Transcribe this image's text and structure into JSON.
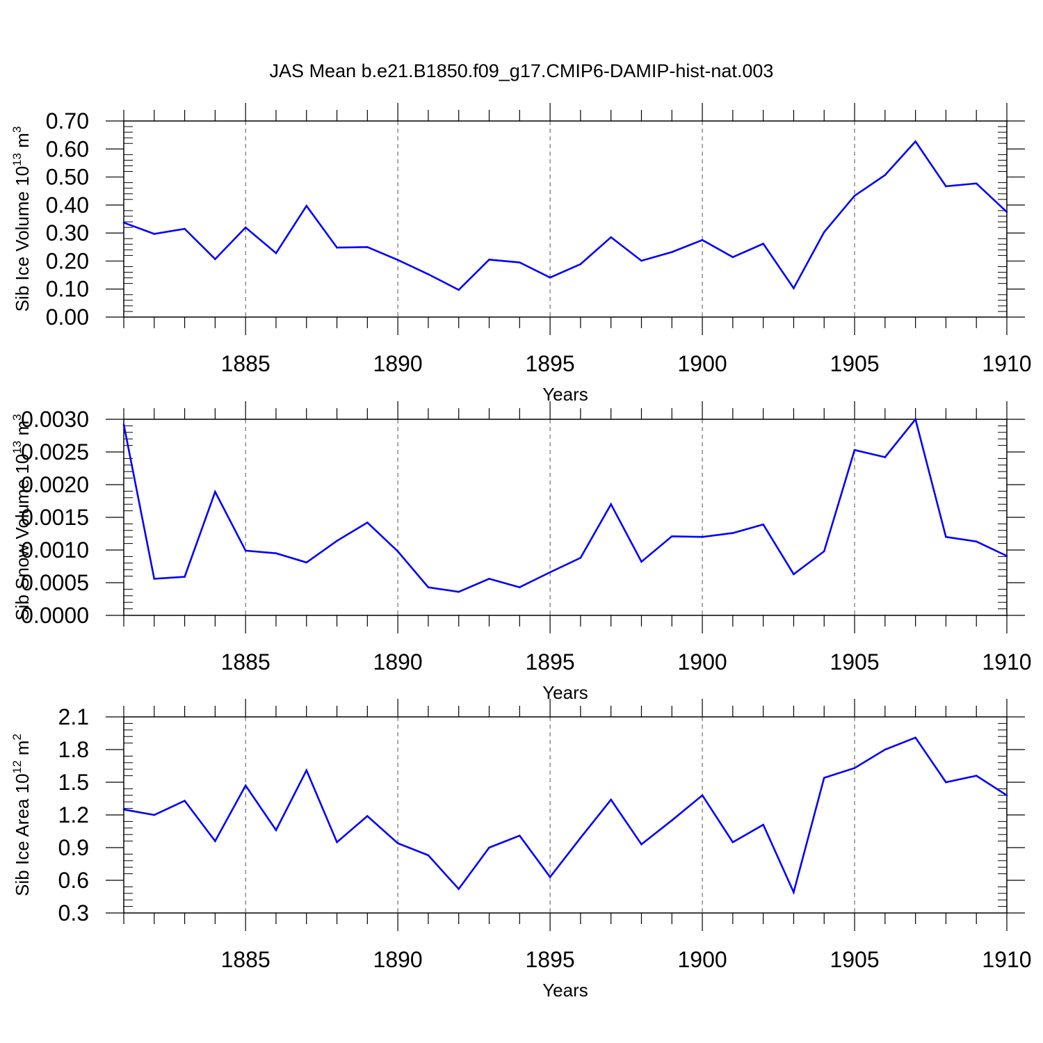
{
  "title": "JAS Mean b.e21.B1850.f09_g17.CMIP6-DAMIP-hist-nat.003",
  "line_color": "#0000ff",
  "chart_data": [
    {
      "type": "line",
      "ylabel": "Sib Ice Volume 10",
      "ylabel_exp": "13",
      "ylabel_unit": " m",
      "ylabel_unit_exp": "3",
      "xlabel": "Years",
      "xlim": [
        1881,
        1910
      ],
      "ylim": [
        0,
        0.7
      ],
      "x_ticks": [
        "1885",
        "1890",
        "1895",
        "1900",
        "1905",
        "1910"
      ],
      "y_ticks": [
        "0.00",
        "0.10",
        "0.20",
        "0.30",
        "0.40",
        "0.50",
        "0.60",
        "0.70"
      ],
      "series": [
        {
          "x": [
            1881,
            1882,
            1883,
            1884,
            1885,
            1886,
            1887,
            1888,
            1889,
            1890,
            1891,
            1892,
            1893,
            1894,
            1895,
            1896,
            1897,
            1898,
            1899,
            1900,
            1901,
            1902,
            1903,
            1904,
            1905,
            1906,
            1907,
            1908,
            1909,
            1910
          ],
          "values": [
            0.337,
            0.297,
            0.315,
            0.207,
            0.32,
            0.228,
            0.397,
            0.248,
            0.25,
            0.204,
            0.153,
            0.097,
            0.205,
            0.195,
            0.141,
            0.189,
            0.285,
            0.201,
            0.232,
            0.275,
            0.214,
            0.262,
            0.103,
            0.303,
            0.433,
            0.507,
            0.627,
            0.467,
            0.477,
            0.375
          ]
        }
      ]
    },
    {
      "type": "line",
      "ylabel": "Sib Snow Volume 10",
      "ylabel_exp": "13",
      "ylabel_unit": " m",
      "ylabel_unit_exp": "3",
      "xlabel": "Years",
      "xlim": [
        1881,
        1910
      ],
      "ylim": [
        0,
        0.003
      ],
      "x_ticks": [
        "1885",
        "1890",
        "1895",
        "1900",
        "1905",
        "1910"
      ],
      "y_ticks": [
        "0.0000",
        "0.0005",
        "0.0010",
        "0.0015",
        "0.0020",
        "0.0025",
        "0.0030"
      ],
      "series": [
        {
          "x": [
            1881,
            1882,
            1883,
            1884,
            1885,
            1886,
            1887,
            1888,
            1889,
            1890,
            1891,
            1892,
            1893,
            1894,
            1895,
            1896,
            1897,
            1898,
            1899,
            1900,
            1901,
            1902,
            1903,
            1904,
            1905,
            1906,
            1907,
            1908,
            1909,
            1910
          ],
          "values": [
            0.00292,
            0.00056,
            0.00059,
            0.00189,
            0.00099,
            0.00095,
            0.00081,
            0.00114,
            0.00142,
            0.00098,
            0.00043,
            0.00036,
            0.00056,
            0.00043,
            0.00066,
            0.00088,
            0.0017,
            0.00082,
            0.00121,
            0.0012,
            0.00126,
            0.00139,
            0.00063,
            0.00098,
            0.00253,
            0.00242,
            0.003,
            0.0012,
            0.00113,
            0.00091
          ]
        }
      ]
    },
    {
      "type": "line",
      "ylabel": "Sib Ice Area 10",
      "ylabel_exp": "12",
      "ylabel_unit": " m",
      "ylabel_unit_exp": "2",
      "xlabel": "Years",
      "xlim": [
        1881,
        1910
      ],
      "ylim": [
        0.3,
        2.1
      ],
      "x_ticks": [
        "1885",
        "1890",
        "1895",
        "1900",
        "1905",
        "1910"
      ],
      "y_ticks": [
        "0.3",
        "0.6",
        "0.9",
        "1.2",
        "1.5",
        "1.8",
        "2.1"
      ],
      "series": [
        {
          "x": [
            1881,
            1882,
            1883,
            1884,
            1885,
            1886,
            1887,
            1888,
            1889,
            1890,
            1891,
            1892,
            1893,
            1894,
            1895,
            1896,
            1897,
            1898,
            1899,
            1900,
            1901,
            1902,
            1903,
            1904,
            1905,
            1906,
            1907,
            1908,
            1909,
            1910
          ],
          "values": [
            1.25,
            1.2,
            1.33,
            0.96,
            1.47,
            1.06,
            1.61,
            0.95,
            1.19,
            0.94,
            0.83,
            0.52,
            0.9,
            1.01,
            0.63,
            0.99,
            1.34,
            0.93,
            1.15,
            1.38,
            0.95,
            1.11,
            0.49,
            1.54,
            1.63,
            1.8,
            1.91,
            1.5,
            1.56,
            1.38
          ]
        }
      ]
    }
  ]
}
